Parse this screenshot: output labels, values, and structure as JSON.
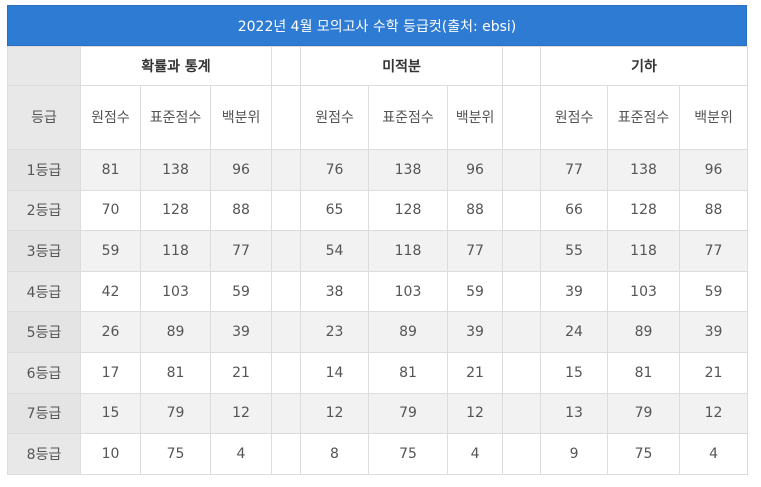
{
  "title": "2022년 4월 모의고사 수학 등급컷(출처: ebsi)",
  "groups": [
    "확률과 통계",
    "미적분",
    "기하"
  ],
  "subheaders": {
    "grade": "등급",
    "raw": "원점수",
    "standard": "표준점수",
    "percentile": "백분위"
  },
  "rows": [
    {
      "grade": "1등급",
      "prob": [
        "81",
        "138",
        "96"
      ],
      "calc": [
        "76",
        "138",
        "96"
      ],
      "geo": [
        "77",
        "138",
        "96"
      ]
    },
    {
      "grade": "2등급",
      "prob": [
        "70",
        "128",
        "88"
      ],
      "calc": [
        "65",
        "128",
        "88"
      ],
      "geo": [
        "66",
        "128",
        "88"
      ]
    },
    {
      "grade": "3등급",
      "prob": [
        "59",
        "118",
        "77"
      ],
      "calc": [
        "54",
        "118",
        "77"
      ],
      "geo": [
        "55",
        "118",
        "77"
      ]
    },
    {
      "grade": "4등급",
      "prob": [
        "42",
        "103",
        "59"
      ],
      "calc": [
        "38",
        "103",
        "59"
      ],
      "geo": [
        "39",
        "103",
        "59"
      ]
    },
    {
      "grade": "5등급",
      "prob": [
        "26",
        "89",
        "39"
      ],
      "calc": [
        "23",
        "89",
        "39"
      ],
      "geo": [
        "24",
        "89",
        "39"
      ]
    },
    {
      "grade": "6등급",
      "prob": [
        "17",
        "81",
        "21"
      ],
      "calc": [
        "14",
        "81",
        "21"
      ],
      "geo": [
        "15",
        "81",
        "21"
      ]
    },
    {
      "grade": "7등급",
      "prob": [
        "15",
        "79",
        "12"
      ],
      "calc": [
        "12",
        "79",
        "12"
      ],
      "geo": [
        "13",
        "79",
        "12"
      ]
    },
    {
      "grade": "8등급",
      "prob": [
        "10",
        "75",
        "4"
      ],
      "calc": [
        "8",
        "75",
        "4"
      ],
      "geo": [
        "9",
        "75",
        "4"
      ]
    }
  ],
  "colors": {
    "title_bg": "#2e7bd3",
    "title_text": "#ffffff",
    "grade_col_bg": "#e8e8e8",
    "shaded_row": "#f2f2f2"
  }
}
